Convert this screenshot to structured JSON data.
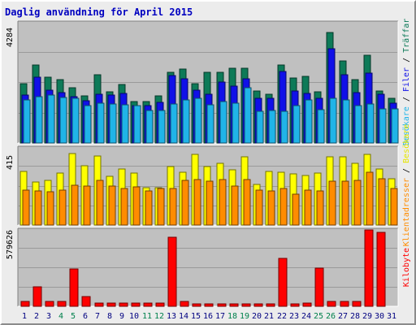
{
  "chart_data": {
    "type": "bar",
    "title": "Daglig användning för April 2015",
    "x": [
      "1",
      "2",
      "3",
      "4",
      "5",
      "6",
      "7",
      "8",
      "9",
      "10",
      "11",
      "12",
      "13",
      "14",
      "15",
      "16",
      "17",
      "18",
      "19",
      "20",
      "21",
      "22",
      "23",
      "24",
      "25",
      "26",
      "27",
      "28",
      "29",
      "30",
      "31"
    ],
    "weekend_days": [
      "4",
      "5",
      "11",
      "12",
      "18",
      "19",
      "25",
      "26"
    ],
    "panels": [
      {
        "name": "top",
        "ymax_label": "4284",
        "ymax": 4284,
        "series": [
          {
            "name": "Träffar",
            "color": "#0d7a58",
            "values": [
              2120,
              2780,
              2350,
              2250,
              1960,
              1690,
              2440,
              1820,
              2070,
              1480,
              1480,
              1690,
              2520,
              2620,
              2120,
              2520,
              2520,
              2650,
              2650,
              1840,
              1750,
              2790,
              2320,
              2380,
              1820,
              3950,
              2920,
              2250,
              3120,
              1860,
              1590
            ]
          },
          {
            "name": "Filer",
            "color": "#1010e8",
            "values": [
              1710,
              2350,
              1880,
              1800,
              1640,
              1500,
              1750,
              1710,
              1770,
              1330,
              1330,
              1440,
              2410,
              2290,
              1880,
              1730,
              2160,
              2040,
              2300,
              1590,
              1590,
              2540,
              1850,
              1770,
              1600,
              3350,
              2420,
              1800,
              2480,
              1730,
              1430
            ]
          },
          {
            "name": "Besökare",
            "color": "#20b4e8",
            "values": [
              1530,
              1640,
              1710,
              1610,
              1590,
              1320,
              1410,
              1390,
              1370,
              1330,
              1160,
              1170,
              1390,
              1520,
              1590,
              1350,
              1470,
              1420,
              1980,
              1120,
              1150,
              1140,
              1330,
              1530,
              1200,
              1600,
              1530,
              1330,
              1400,
              1220,
              1210
            ]
          }
        ]
      },
      {
        "name": "middle",
        "ymax_label": "415",
        "ymax": 415,
        "series": [
          {
            "name": "Besökare",
            "color": "#ffff00",
            "values": [
              290,
              230,
              240,
              280,
              385,
              320,
              370,
              260,
              300,
              280,
              200,
              200,
              315,
              285,
              380,
              315,
              330,
              295,
              365,
              220,
              290,
              285,
              275,
              265,
              280,
              365,
              365,
              330,
              380,
              300,
              250
            ]
          },
          {
            "name": "Klientadresser",
            "color": "#ff8c00",
            "values": [
              190,
              185,
              180,
              190,
              215,
              210,
              240,
              210,
              195,
              205,
              185,
              195,
              195,
              240,
              245,
              235,
              245,
              210,
              245,
              190,
              185,
              195,
              165,
              190,
              185,
              235,
              235,
              240,
              285,
              250,
              195
            ]
          }
        ]
      },
      {
        "name": "bottom",
        "ymax_label": "579626",
        "ymax": 579626,
        "series": [
          {
            "name": "Kilobyte",
            "color": "#ff0000",
            "values": [
              38000,
              145000,
              38000,
              38000,
              285000,
              72000,
              25000,
              25000,
              25000,
              25000,
              25000,
              25000,
              525000,
              38000,
              18000,
              18000,
              18000,
              18000,
              18000,
              18000,
              18000,
              365000,
              18000,
              25000,
              290000,
              38000,
              38000,
              38000,
              580000,
              560000,
              0
            ]
          }
        ]
      }
    ],
    "right_labels": [
      {
        "text": "Träffar",
        "color": "#0d7a58"
      },
      {
        "text": "Filer",
        "color": "#1010e8"
      },
      {
        "text": "Besökare",
        "color": "#20b4e8"
      },
      {
        "text": "Klientadresser",
        "color": "#ff8c00"
      },
      {
        "text": "Besökare",
        "color": "#e6e600"
      },
      {
        "text": "Kilobyte",
        "color": "#ff0000"
      }
    ],
    "separator": "/",
    "colors": {
      "plot_bg": "#c0c0c0",
      "title": "#0000c0",
      "weekday_label": "#000080",
      "weekend_label": "#00804c",
      "separator": "#000000"
    },
    "grid": true
  }
}
